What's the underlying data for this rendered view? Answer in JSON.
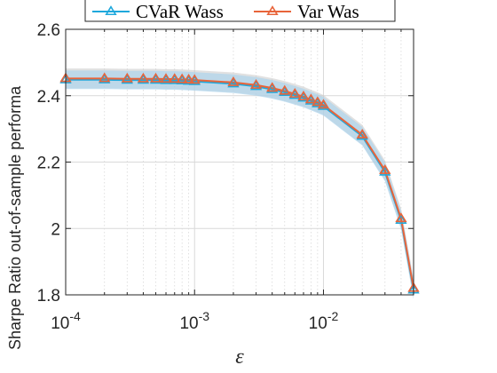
{
  "colors": {
    "cvar": "#1ea8dc",
    "var": "#e8643a",
    "cvar_band": "#a9d3ec",
    "var_band": "#c8c8c8",
    "grid": "#d9d9d9",
    "axis": "#262626"
  },
  "chart_data": {
    "type": "line",
    "xscale": "log",
    "xlim": [
      0.0001,
      0.05
    ],
    "ylim": [
      1.8,
      2.6
    ],
    "xlabel": "ε",
    "ylabel": "Sharpe Ratio out-of-sample performa",
    "x_ticks": [
      0.0001,
      0.001,
      0.01
    ],
    "x_tick_labels": [
      {
        "base": "10",
        "exp": "-4"
      },
      {
        "base": "10",
        "exp": "-3"
      },
      {
        "base": "10",
        "exp": "-2"
      }
    ],
    "y_ticks": [
      1.8,
      2.0,
      2.2,
      2.4,
      2.6
    ],
    "y_tick_labels": [
      "1.8",
      "2",
      "2.2",
      "2.4",
      "2.6"
    ],
    "grid": true,
    "legend_position": "top",
    "x": [
      0.0001,
      0.0002,
      0.0003,
      0.0004,
      0.0005,
      0.0006,
      0.0007,
      0.0008,
      0.0009,
      0.001,
      0.002,
      0.003,
      0.004,
      0.005,
      0.006,
      0.007,
      0.008,
      0.009,
      0.01,
      0.02,
      0.03,
      0.04,
      0.05
    ],
    "series": [
      {
        "name": "CVaR Wass",
        "color_key": "cvar",
        "marker": "triangle-up",
        "values": [
          2.448,
          2.448,
          2.447,
          2.447,
          2.447,
          2.446,
          2.446,
          2.445,
          2.444,
          2.443,
          2.436,
          2.428,
          2.419,
          2.41,
          2.401,
          2.393,
          2.384,
          2.376,
          2.368,
          2.278,
          2.17,
          2.025,
          1.815
        ],
        "band": 0.028
      },
      {
        "name": "Var Was",
        "color_key": "var",
        "marker": "triangle-up",
        "values": [
          2.452,
          2.452,
          2.451,
          2.451,
          2.451,
          2.45,
          2.45,
          2.449,
          2.448,
          2.447,
          2.44,
          2.432,
          2.423,
          2.414,
          2.405,
          2.397,
          2.388,
          2.38,
          2.372,
          2.282,
          2.175,
          2.03,
          1.82
        ],
        "band": 0.03
      }
    ]
  }
}
